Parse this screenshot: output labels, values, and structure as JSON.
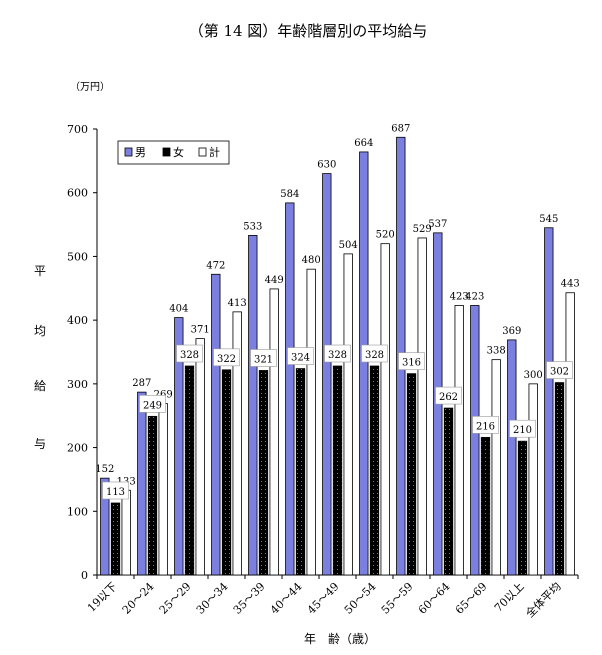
{
  "chart_data": {
    "type": "bar",
    "title": "（第 14 図）年齢階層別の平均給与",
    "unit_label": "（万円）",
    "ylabel_chars": [
      "平",
      "均",
      "給",
      "与"
    ],
    "xlabel": "年　齢（歳）",
    "ylim": [
      0,
      700
    ],
    "yticks": [
      0,
      100,
      200,
      300,
      400,
      500,
      600,
      700
    ],
    "grid": false,
    "legend_position": "top-left",
    "categories": [
      "19以下",
      "20～24",
      "25～29",
      "30～34",
      "35～39",
      "40～44",
      "45～49",
      "50～54",
      "55～59",
      "60～64",
      "65～69",
      "70以上",
      "全体平均"
    ],
    "series": [
      {
        "name": "男",
        "color": "#7b7fe0",
        "values": [
          152,
          287,
          404,
          472,
          533,
          584,
          630,
          664,
          687,
          537,
          423,
          369,
          545
        ]
      },
      {
        "name": "女",
        "color": "#000000",
        "values": [
          113,
          249,
          328,
          322,
          321,
          324,
          328,
          328,
          316,
          262,
          216,
          210,
          302
        ]
      },
      {
        "name": "計",
        "color": "#ffffff",
        "values": [
          133,
          269,
          371,
          413,
          449,
          480,
          504,
          520,
          529,
          423,
          338,
          300,
          443
        ]
      }
    ]
  }
}
